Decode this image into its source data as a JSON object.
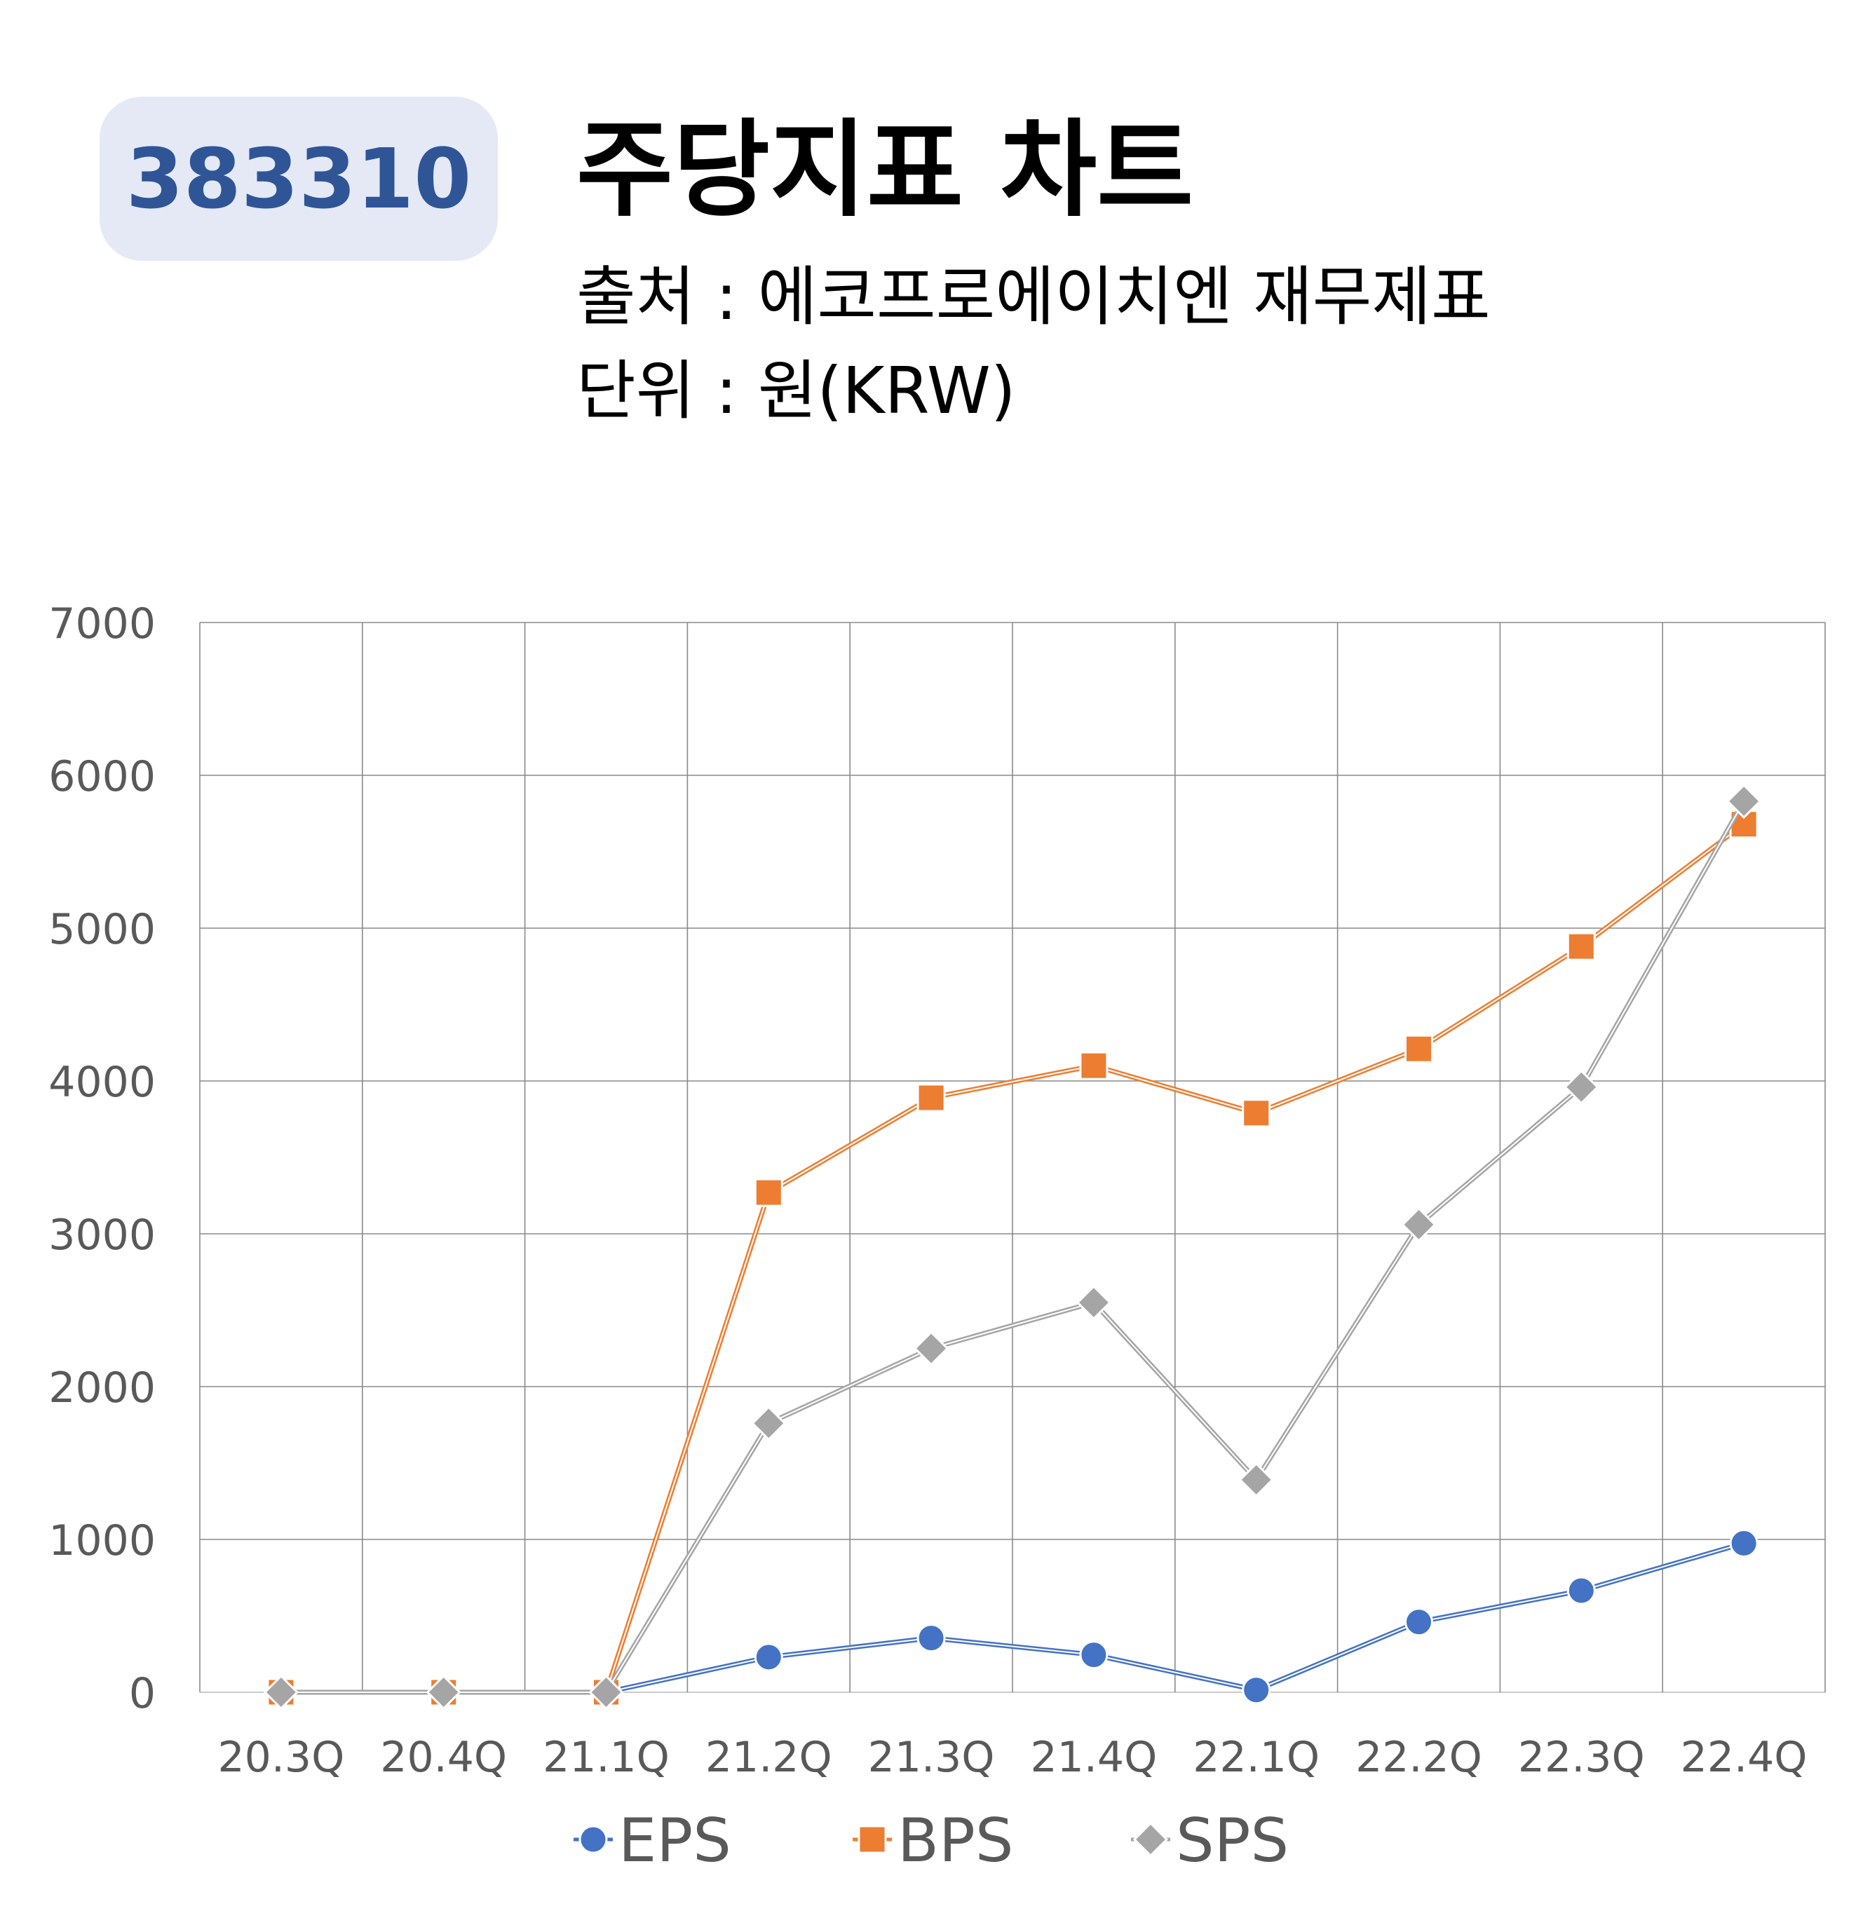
{
  "header": {
    "ticker": "383310",
    "title": "주당지표 차트",
    "source": "출처 : 에코프로에이치엔 재무제표",
    "unit": "단위 : 원(KRW)"
  },
  "chart_data": {
    "type": "line",
    "categories": [
      "20.3Q",
      "20.4Q",
      "21.1Q",
      "21.2Q",
      "21.3Q",
      "21.4Q",
      "22.1Q",
      "22.2Q",
      "22.3Q",
      "22.4Q"
    ],
    "ylim": [
      0,
      7000
    ],
    "yticks": [
      0,
      1000,
      2000,
      3000,
      4000,
      5000,
      6000,
      7000
    ],
    "grid": true,
    "legend": "bottom",
    "series": [
      {
        "name": "EPS",
        "marker": "circle",
        "color": "#4472c4",
        "values": [
          0,
          0,
          0,
          230,
          355,
          245,
          15,
          460,
          665,
          975
        ]
      },
      {
        "name": "BPS",
        "marker": "square",
        "color": "#ed7d31",
        "values": [
          0,
          0,
          0,
          3270,
          3890,
          4100,
          3790,
          4210,
          4880,
          5680
        ]
      },
      {
        "name": "SPS",
        "marker": "diamond",
        "color": "#a5a5a5",
        "values": [
          0,
          0,
          0,
          1760,
          2250,
          2550,
          1390,
          3060,
          3960,
          5830
        ]
      }
    ]
  }
}
